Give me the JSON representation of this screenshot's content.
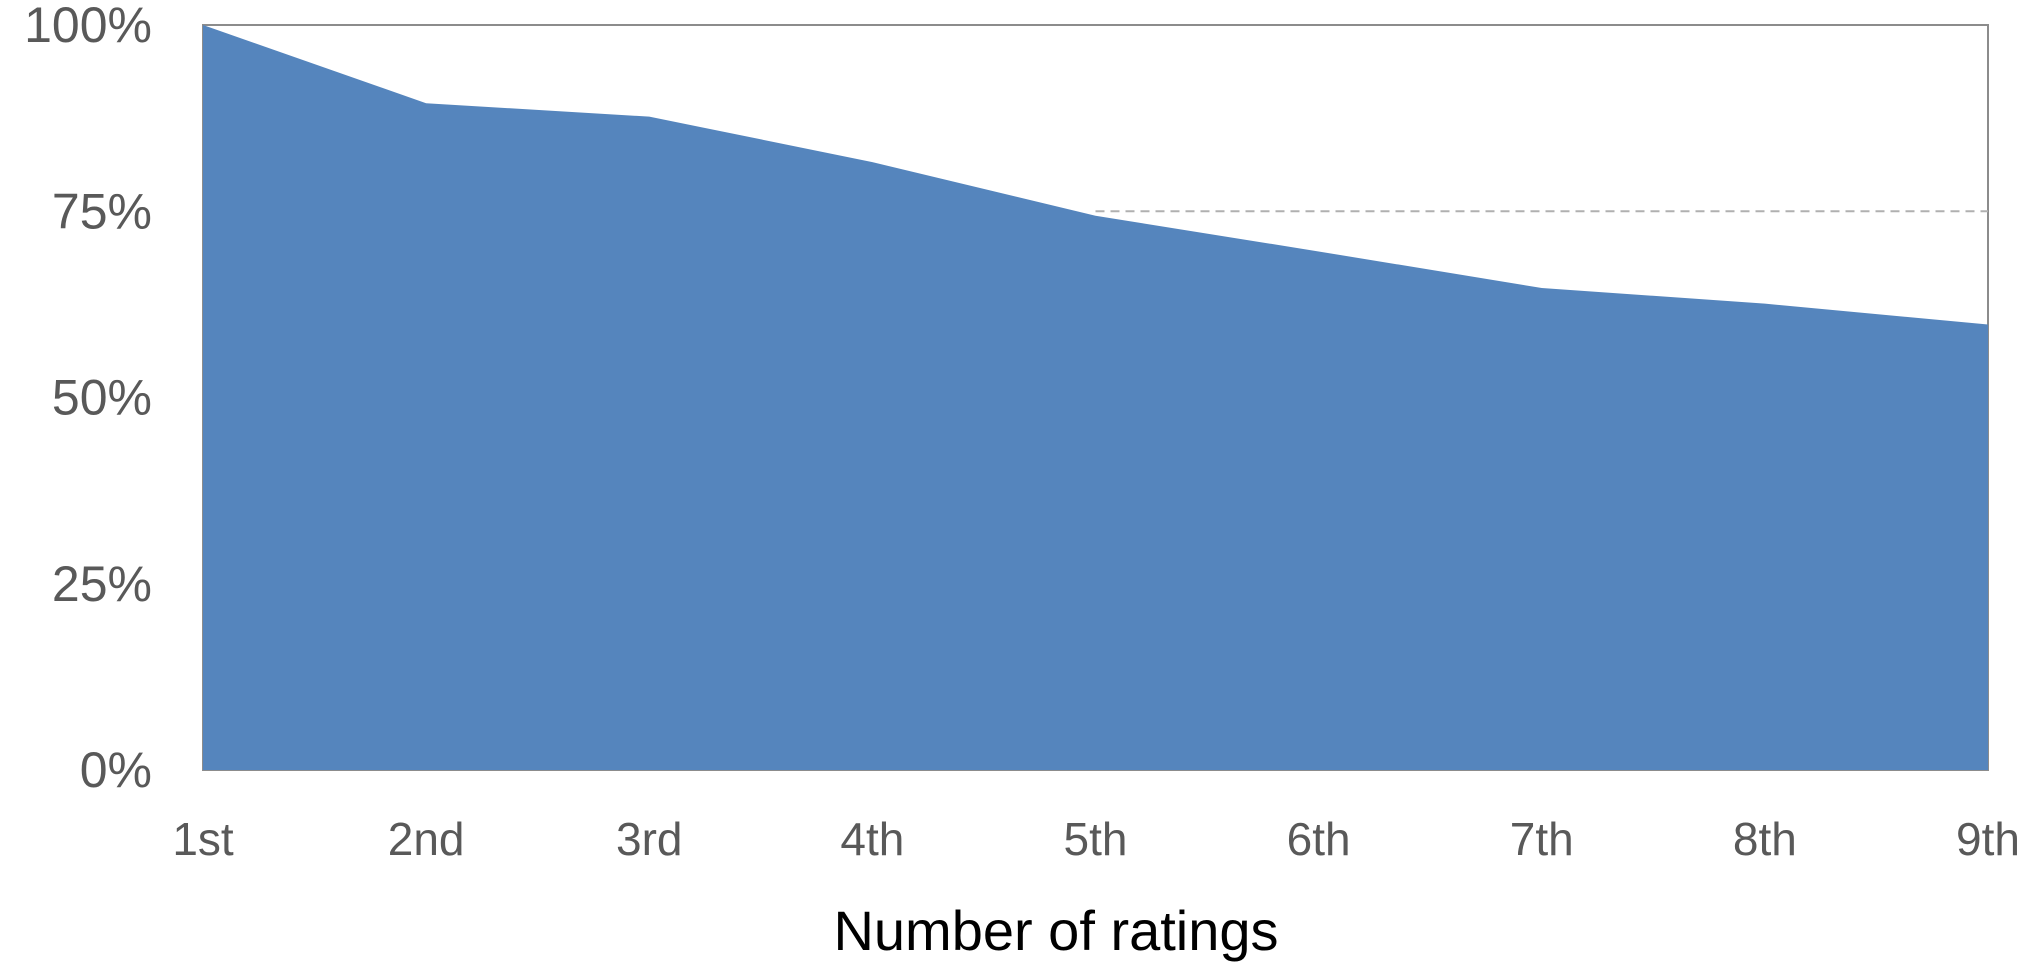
{
  "chart_data": {
    "type": "area",
    "title": "",
    "xlabel": "Number of ratings",
    "ylabel": "",
    "categories": [
      "1st",
      "2nd",
      "3rd",
      "4th",
      "5th",
      "6th",
      "7th",
      "8th",
      "9th"
    ],
    "series": [
      {
        "values": [
          100,
          89.5,
          87.7,
          81.6,
          74.4,
          69.6,
          64.7,
          62.6,
          59.8
        ],
        "color": "#5585bd"
      }
    ],
    "reference_line": {
      "value": 75,
      "from_category": "5th",
      "style": "dashed",
      "color": "#b0b0b0"
    },
    "ylim": [
      0,
      100
    ],
    "y_ticks": [
      {
        "value": 0,
        "label": "0%"
      },
      {
        "value": 25,
        "label": "25%"
      },
      {
        "value": 50,
        "label": "50%"
      },
      {
        "value": 75,
        "label": "75%"
      },
      {
        "value": 100,
        "label": "100%"
      }
    ],
    "grid": false,
    "legend": "none"
  }
}
